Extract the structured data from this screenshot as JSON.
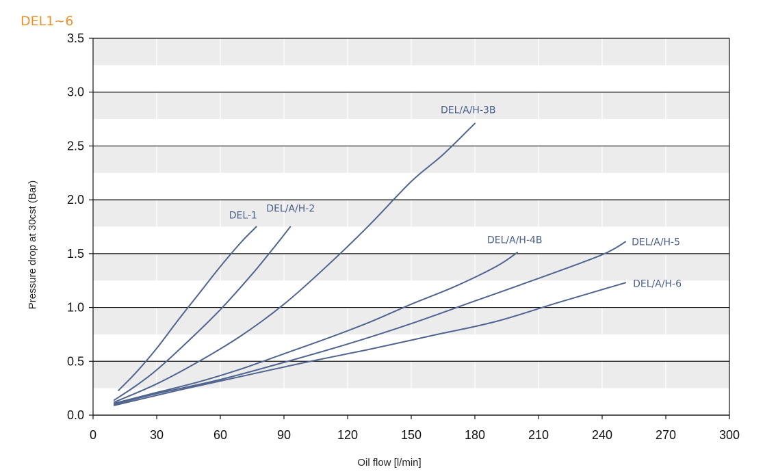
{
  "page_title": "DEL1~6",
  "colors": {
    "title": "#e8922c",
    "series": "#4f648f",
    "band": "#ececec",
    "grid_major": "#111111",
    "grid_minor": "#ffffff"
  },
  "chart_data": {
    "type": "line",
    "title": "",
    "xlabel": "Oil flow [l/min]",
    "ylabel": "Pressure drop at 30cst (Bar)",
    "xlim": [
      0,
      300
    ],
    "ylim": [
      0,
      3.5
    ],
    "x_ticks": [
      "0",
      "30",
      "60",
      "90",
      "120",
      "150",
      "180",
      "210",
      "240",
      "270",
      "300"
    ],
    "y_ticks": [
      "0.0",
      "0.5",
      "1.0",
      "1.5",
      "2.0",
      "2.5",
      "3.0",
      "3.5"
    ],
    "grid": "horizontal lines every 0.5 bar with alternating grey bands; white vertical lines every 30 l/min",
    "series": [
      {
        "name": "DEL-1",
        "x": [
          12,
          20,
          30,
          40,
          50,
          60,
          70,
          77
        ],
        "y": [
          0.23,
          0.39,
          0.62,
          0.88,
          1.13,
          1.38,
          1.61,
          1.75
        ]
      },
      {
        "name": "DEL/A/H-2",
        "x": [
          10,
          20,
          30,
          45,
          60,
          75,
          85,
          93
        ],
        "y": [
          0.14,
          0.27,
          0.42,
          0.69,
          0.98,
          1.31,
          1.55,
          1.75
        ]
      },
      {
        "name": "DEL/A/H-3B",
        "x": [
          10,
          30,
          50,
          70,
          90,
          110,
          130,
          150,
          165,
          180
        ],
        "y": [
          0.12,
          0.29,
          0.5,
          0.74,
          1.03,
          1.38,
          1.76,
          2.17,
          2.42,
          2.71
        ]
      },
      {
        "name": "DEL/A/H-4B",
        "x": [
          10,
          30,
          50,
          70,
          90,
          110,
          130,
          150,
          170,
          190,
          200
        ],
        "y": [
          0.11,
          0.21,
          0.31,
          0.43,
          0.57,
          0.71,
          0.86,
          1.03,
          1.19,
          1.38,
          1.51
        ]
      },
      {
        "name": "DEL/A/H-5",
        "x": [
          10,
          30,
          60,
          90,
          120,
          150,
          180,
          210,
          240,
          251
        ],
        "y": [
          0.1,
          0.2,
          0.33,
          0.49,
          0.66,
          0.85,
          1.06,
          1.27,
          1.49,
          1.61
        ]
      },
      {
        "name": "DEL/A/H-6",
        "x": [
          10,
          40,
          70,
          100,
          130,
          160,
          190,
          220,
          251
        ],
        "y": [
          0.09,
          0.23,
          0.36,
          0.49,
          0.61,
          0.74,
          0.87,
          1.05,
          1.23
        ]
      }
    ]
  }
}
